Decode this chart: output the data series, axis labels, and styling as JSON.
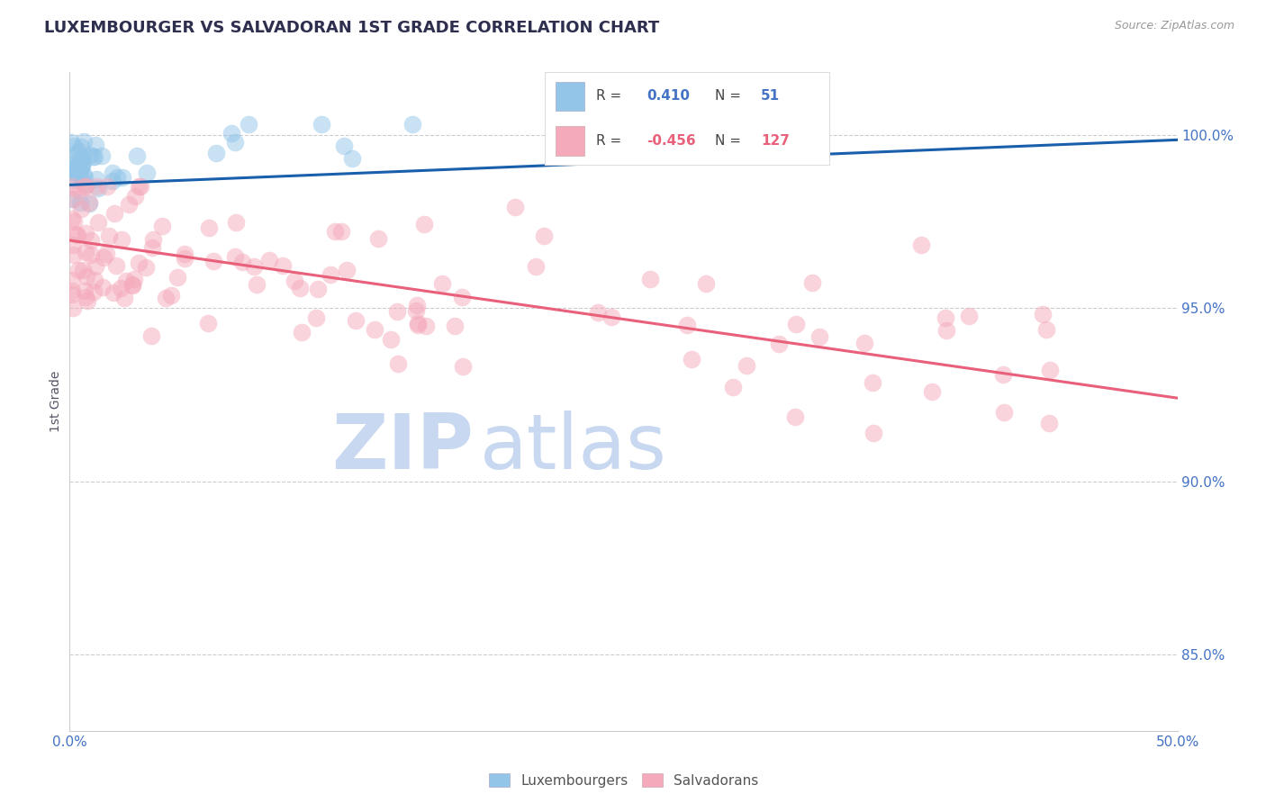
{
  "title": "LUXEMBOURGER VS SALVADORAN 1ST GRADE CORRELATION CHART",
  "source": "Source: ZipAtlas.com",
  "ylabel": "1st Grade",
  "ytick_labels": [
    "85.0%",
    "90.0%",
    "95.0%",
    "100.0%"
  ],
  "ytick_values": [
    0.85,
    0.9,
    0.95,
    1.0
  ],
  "xlim": [
    0.0,
    0.5
  ],
  "ylim": [
    0.828,
    1.018
  ],
  "legend_blue_r": "0.410",
  "legend_blue_n": "51",
  "legend_pink_r": "-0.456",
  "legend_pink_n": "127",
  "legend_labels": [
    "Luxembourgers",
    "Salvadorans"
  ],
  "blue_color": "#92C5E8",
  "pink_color": "#F5AABB",
  "blue_line_color": "#1A5FAB",
  "pink_line_color": "#E8607A",
  "title_color": "#2E2E4E",
  "axis_label_color": "#4472C4",
  "blue_trendline_x": [
    0.0,
    0.5
  ],
  "blue_trendline_y": [
    0.9855,
    0.9985
  ],
  "pink_trendline_x": [
    0.0,
    0.5
  ],
  "pink_trendline_y": [
    0.9695,
    0.924
  ]
}
